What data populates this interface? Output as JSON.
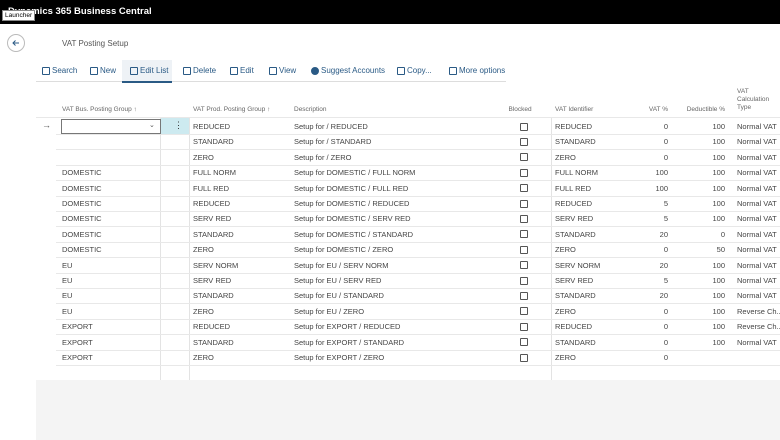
{
  "header": {
    "launcher": "Launcher",
    "app_title": "Dynamics 365 Business Central"
  },
  "page": {
    "title": "VAT Posting Setup"
  },
  "actions": [
    "Search",
    "New",
    "Edit List",
    "Delete",
    "Edit",
    "View",
    "Suggest Accounts",
    "Copy...",
    "More options"
  ],
  "table": {
    "columns": [
      "VAT Bus. Posting Group ↑",
      "VAT Prod. Posting Group ↑",
      "Description",
      "Blocked",
      "VAT Identifier",
      "VAT %",
      "Deductible %",
      "VAT Calculation Type"
    ],
    "rows": [
      [
        null,
        "REDUCED",
        "Setup for / REDUCED",
        false,
        "REDUCED",
        0,
        100,
        "Normal VAT"
      ],
      [
        null,
        "STANDARD",
        "Setup for / STANDARD",
        false,
        "STANDARD",
        0,
        100,
        "Normal VAT"
      ],
      [
        null,
        "ZERO",
        "Setup for / ZERO",
        false,
        "ZERO",
        0,
        100,
        "Normal VAT"
      ],
      [
        "DOMESTIC",
        "FULL NORM",
        "Setup for DOMESTIC / FULL NORM",
        false,
        "FULL NORM",
        100,
        100,
        "Normal VAT"
      ],
      [
        "DOMESTIC",
        "FULL RED",
        "Setup for DOMESTIC / FULL RED",
        false,
        "FULL RED",
        100,
        100,
        "Normal VAT"
      ],
      [
        "DOMESTIC",
        "REDUCED",
        "Setup for DOMESTIC / REDUCED",
        false,
        "REDUCED",
        5,
        100,
        "Normal VAT"
      ],
      [
        "DOMESTIC",
        "SERV RED",
        "Setup for DOMESTIC / SERV RED",
        false,
        "SERV RED",
        5,
        100,
        "Normal VAT"
      ],
      [
        "DOMESTIC",
        "STANDARD",
        "Setup for DOMESTIC / STANDARD",
        false,
        "STANDARD",
        20,
        0,
        "Normal VAT"
      ],
      [
        "DOMESTIC",
        "ZERO",
        "Setup for DOMESTIC / ZERO",
        false,
        "ZERO",
        0,
        50,
        "Normal VAT"
      ],
      [
        "EU",
        "SERV NORM",
        "Setup for EU / SERV NORM",
        false,
        "SERV NORM",
        20,
        100,
        "Normal VAT"
      ],
      [
        "EU",
        "SERV RED",
        "Setup for EU / SERV RED",
        false,
        "SERV RED",
        5,
        100,
        "Normal VAT"
      ],
      [
        "EU",
        "STANDARD",
        "Setup for EU / STANDARD",
        false,
        "STANDARD",
        20,
        100,
        "Normal VAT"
      ],
      [
        "EU",
        "ZERO",
        "Setup for EU / ZERO",
        false,
        "ZERO",
        0,
        100,
        "Reverse Ch..."
      ],
      [
        "EXPORT",
        "REDUCED",
        "Setup for EXPORT / REDUCED",
        false,
        "REDUCED",
        0,
        100,
        "Reverse Ch..."
      ],
      [
        "EXPORT",
        "STANDARD",
        "Setup for EXPORT / STANDARD",
        false,
        "STANDARD",
        0,
        100,
        "Normal VAT"
      ],
      [
        "EXPORT",
        "ZERO",
        "Setup for EXPORT / ZERO",
        false,
        "ZERO",
        0,
        null,
        null
      ]
    ]
  }
}
